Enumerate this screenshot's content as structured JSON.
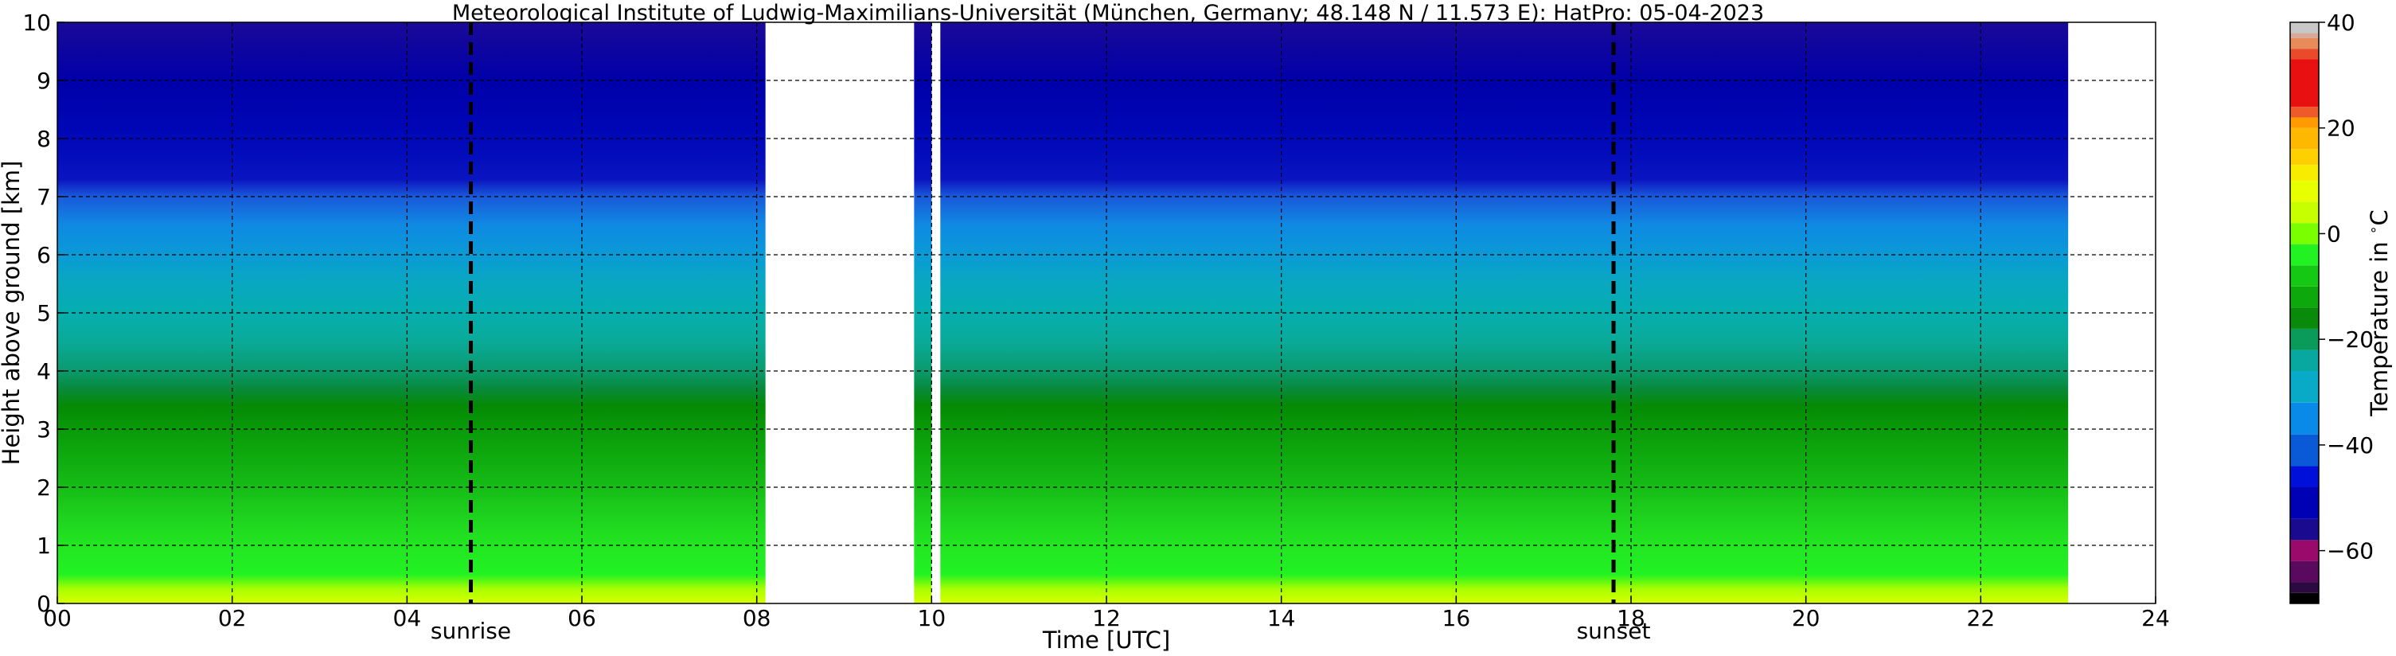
{
  "chart_data": {
    "type": "heatmap",
    "title": "Meteorological Institute of Ludwig-Maximilians-Universität (München, Germany; 48.148 N / 11.573 E):    HatPro: 05-04-2023",
    "xlabel": "Time [UTC]",
    "ylabel": "Height above ground [km]",
    "xlim": [
      0,
      24
    ],
    "ylim": [
      0,
      10
    ],
    "x_ticks": [
      "00",
      "02",
      "04",
      "06",
      "08",
      "10",
      "12",
      "14",
      "16",
      "18",
      "20",
      "22",
      "24"
    ],
    "y_ticks": [
      "0",
      "1",
      "2",
      "3",
      "4",
      "5",
      "6",
      "7",
      "8",
      "9",
      "10"
    ],
    "grid": true,
    "events": [
      {
        "label": "sunrise",
        "x": 4.73
      },
      {
        "label": "sunset",
        "x": 17.8
      }
    ],
    "data_periods": [
      [
        0.0,
        8.1
      ],
      [
        9.8,
        10.0
      ],
      [
        10.1,
        23.0
      ]
    ],
    "temperature_profile": {
      "height_km": [
        0,
        0.25,
        0.5,
        1.0,
        1.5,
        2.0,
        2.5,
        3.0,
        3.4,
        3.7,
        4.0,
        4.5,
        5.0,
        5.5,
        6.0,
        6.5,
        7.0,
        7.3,
        8.0,
        9.0,
        10.0
      ],
      "temp_c": [
        5,
        0,
        -3,
        -6,
        -9,
        -12,
        -15,
        -18,
        -20,
        -22,
        -24,
        -27,
        -30,
        -34,
        -38,
        -42,
        -50,
        -55,
        -57,
        -58,
        -60
      ]
    },
    "colorbar": {
      "label": "Temperature in $^\\circ$C",
      "ticks": [
        "40",
        "20",
        "0",
        "−20",
        "−40",
        "−60"
      ],
      "range": [
        -70,
        40
      ]
    }
  }
}
